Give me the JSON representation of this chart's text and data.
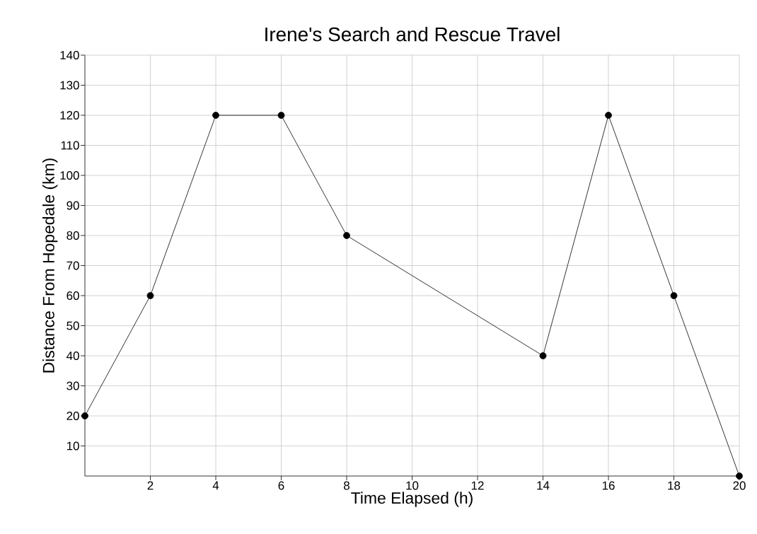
{
  "chart_data": {
    "type": "line",
    "title": "Irene's Search and Rescue Travel",
    "xlabel": "Time Elapsed (h)",
    "ylabel": "Distance From Hopedale (km)",
    "x": [
      0,
      2,
      4,
      6,
      8,
      14,
      16,
      18,
      20
    ],
    "series": [
      {
        "color": "#000000",
        "values": [
          20,
          60,
          120,
          120,
          80,
          40,
          120,
          60,
          0
        ]
      }
    ],
    "xlim": [
      0,
      20
    ],
    "xticks": [
      2,
      4,
      6,
      8,
      10,
      12,
      14,
      16,
      18,
      20
    ],
    "ylim": [
      0,
      140
    ],
    "yticks": [
      10,
      20,
      30,
      40,
      50,
      60,
      70,
      80,
      90,
      100,
      110,
      120,
      130,
      140
    ],
    "grid": true,
    "marker": "circle",
    "line_style": "solid"
  }
}
